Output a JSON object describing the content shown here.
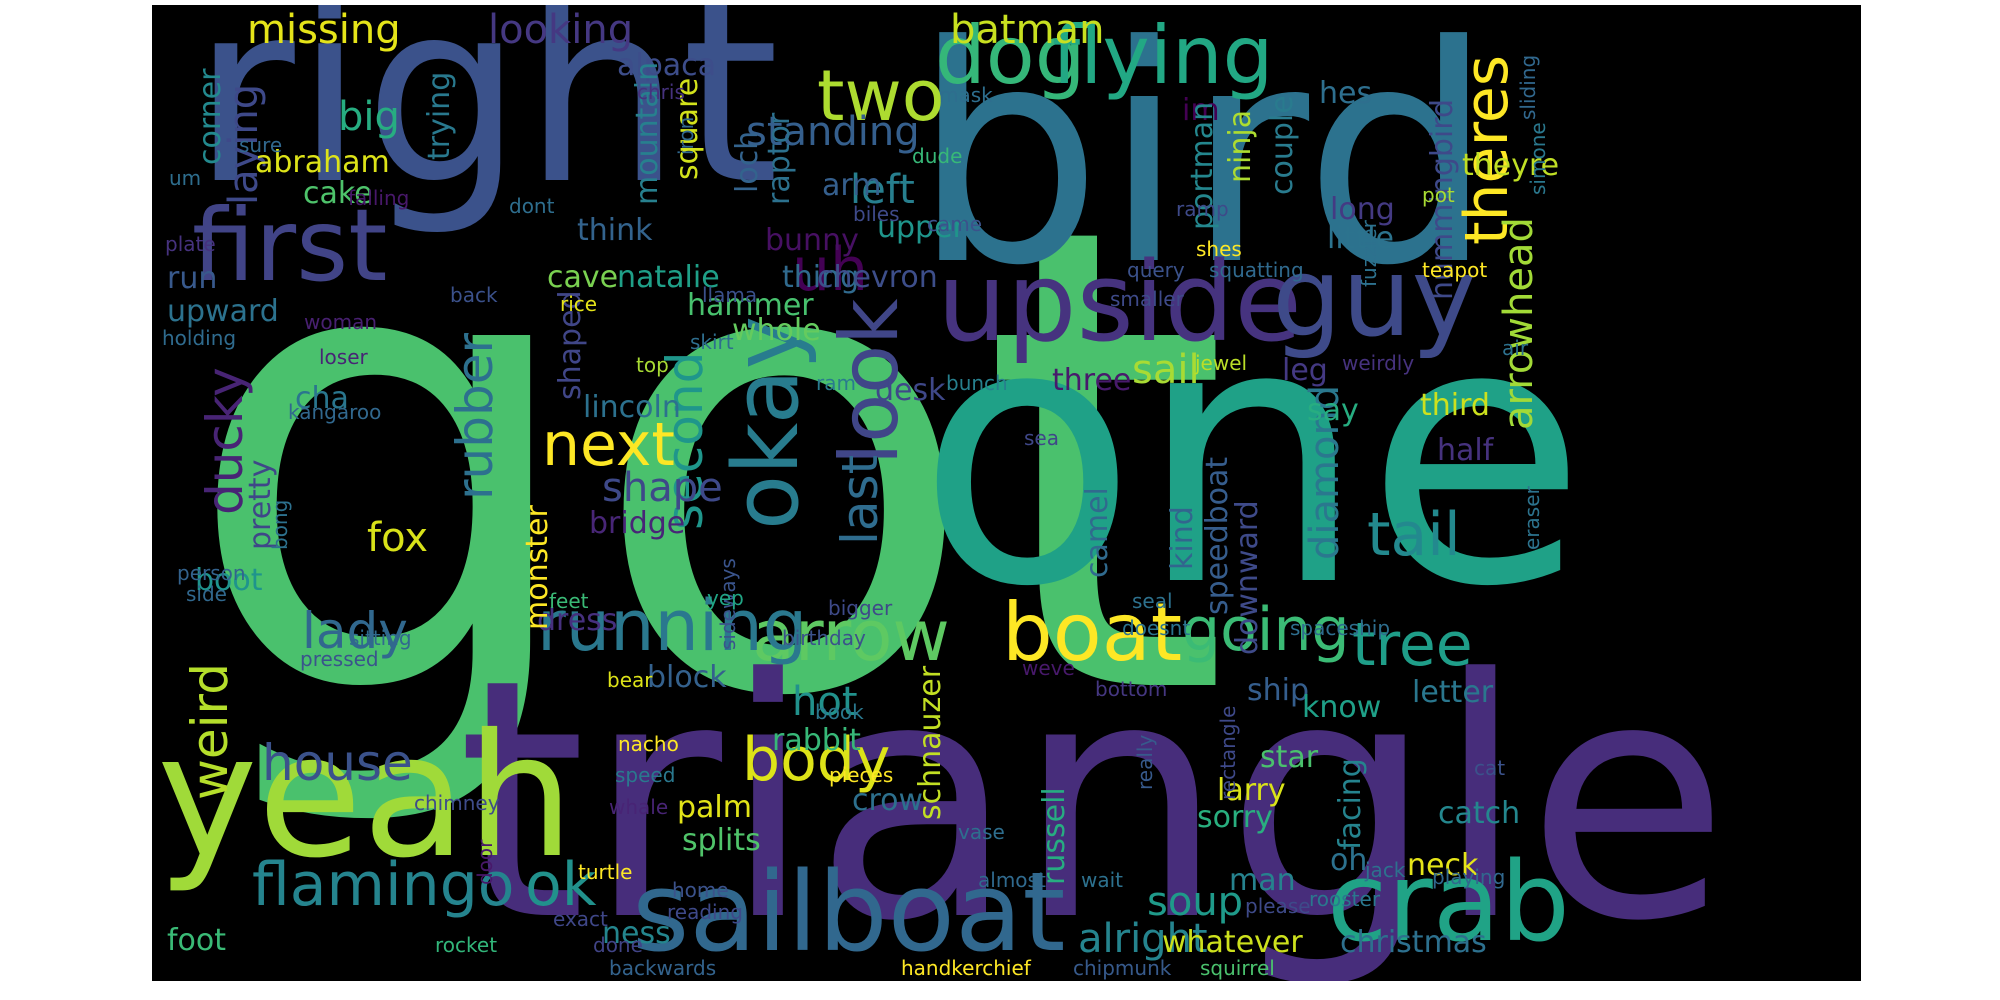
{
  "palette": {
    "background": "#000000",
    "page": "#ffffff",
    "lime": "#a0da39",
    "green": "#4ac16d",
    "teal": "#1fa187",
    "cyan": "#277f8e",
    "steel": "#365c8d",
    "indigo": "#46327e",
    "purple": "#440154",
    "yellow": "#fde725"
  },
  "words": [
    {
      "text": "got",
      "color": "#4ac16d",
      "vertical": false
    },
    {
      "text": "one",
      "color": "#1fa187",
      "vertical": false
    },
    {
      "text": "triangle",
      "color": "#472d7b",
      "vertical": false
    },
    {
      "text": "bird",
      "color": "#2c728e",
      "vertical": false
    },
    {
      "text": "right",
      "color": "#3b528b",
      "vertical": false
    },
    {
      "text": "yeah",
      "color": "#a0da39",
      "vertical": false
    },
    {
      "text": "sailboat",
      "color": "#31688e",
      "vertical": false
    },
    {
      "text": "crab",
      "color": "#20a386",
      "vertical": false
    },
    {
      "text": "upside",
      "color": "#46337f",
      "vertical": false
    },
    {
      "text": "guy",
      "color": "#3e4a89",
      "vertical": false
    },
    {
      "text": "first",
      "color": "#414487",
      "vertical": false
    },
    {
      "text": "dog",
      "color": "#35b779",
      "vertical": false
    },
    {
      "text": "flying",
      "color": "#22a884",
      "vertical": false
    },
    {
      "text": "boat",
      "color": "#fde725",
      "vertical": false
    },
    {
      "text": "arrow",
      "color": "#5ec962",
      "vertical": false
    },
    {
      "text": "running",
      "color": "#2a788e",
      "vertical": false
    },
    {
      "text": "okay",
      "color": "#287c8e",
      "vertical": true
    },
    {
      "text": "look",
      "color": "#404688",
      "vertical": true
    },
    {
      "text": "flamingo",
      "color": "#25848e",
      "vertical": false
    },
    {
      "text": "ok",
      "color": "#21918c",
      "vertical": false
    },
    {
      "text": "two",
      "color": "#addc30",
      "vertical": false
    },
    {
      "text": "theres",
      "color": "#fde725",
      "vertical": true
    },
    {
      "text": "going",
      "color": "#3bbb75",
      "vertical": false
    },
    {
      "text": "tree",
      "color": "#1f9e89",
      "vertical": false
    },
    {
      "text": "tail",
      "color": "#23898e",
      "vertical": false
    },
    {
      "text": "next",
      "color": "#fde725",
      "vertical": false
    },
    {
      "text": "uh",
      "color": "#440154",
      "vertical": false
    },
    {
      "text": "body",
      "color": "#dde318",
      "vertical": false
    },
    {
      "text": "house",
      "color": "#3b528b",
      "vertical": false
    },
    {
      "text": "lady",
      "color": "#31688e",
      "vertical": false
    },
    {
      "text": "weird",
      "color": "#b5de2b",
      "vertical": true
    },
    {
      "text": "ducky",
      "color": "#482475",
      "vertical": true
    },
    {
      "text": "rubber",
      "color": "#2d708e",
      "vertical": true
    },
    {
      "text": "second",
      "color": "#1f968b",
      "vertical": true
    },
    {
      "text": "last",
      "color": "#2f6c8e",
      "vertical": true
    },
    {
      "text": "fox",
      "color": "#d8e219",
      "vertical": false
    },
    {
      "text": "shape",
      "color": "#3e4989",
      "vertical": false
    },
    {
      "text": "batman",
      "color": "#c8e020",
      "vertical": false
    },
    {
      "text": "missing",
      "color": "#e5e419",
      "vertical": false
    },
    {
      "text": "looking",
      "color": "#453882",
      "vertical": false
    },
    {
      "text": "big",
      "color": "#27ad81",
      "vertical": false
    },
    {
      "text": "left",
      "color": "#277f8e",
      "vertical": false
    },
    {
      "text": "standing",
      "color": "#355f8d",
      "vertical": false
    },
    {
      "text": "laying",
      "color": "#3e4989",
      "vertical": true
    },
    {
      "text": "soup",
      "color": "#1f9a8a",
      "vertical": false
    },
    {
      "text": "alright",
      "color": "#25848e",
      "vertical": false
    },
    {
      "text": "foot",
      "color": "#3aba76",
      "vertical": false
    },
    {
      "text": "ness",
      "color": "#24868e",
      "vertical": false
    },
    {
      "text": "sail",
      "color": "#a8db34",
      "vertical": false
    },
    {
      "text": "diamond",
      "color": "#2a788e",
      "vertical": true
    },
    {
      "text": "arrowhead",
      "color": "#a2da37",
      "vertical": true
    },
    {
      "text": "hot",
      "color": "#21918c",
      "vertical": false
    },
    {
      "text": "three",
      "color": "#481a6c",
      "vertical": false
    },
    {
      "text": "leg",
      "color": "#443983",
      "vertical": false
    },
    {
      "text": "third",
      "color": "#cde11d",
      "vertical": false
    },
    {
      "text": "block",
      "color": "#34618d",
      "vertical": false
    },
    {
      "text": "rabbit",
      "color": "#37b878",
      "vertical": false
    },
    {
      "text": "palm",
      "color": "#e2e418",
      "vertical": false
    },
    {
      "text": "crow",
      "color": "#2d708e",
      "vertical": false
    },
    {
      "text": "splits",
      "color": "#50c46a",
      "vertical": false
    },
    {
      "text": "dress",
      "color": "#46307e",
      "vertical": false
    },
    {
      "text": "lincoln",
      "color": "#2c718e",
      "vertical": false
    },
    {
      "text": "cave",
      "color": "#7ad151",
      "vertical": false
    },
    {
      "text": "natalie",
      "color": "#1fa088",
      "vertical": false
    },
    {
      "text": "hammer",
      "color": "#48c16e",
      "vertical": false
    },
    {
      "text": "whole",
      "color": "#65cb5e",
      "vertical": false
    },
    {
      "text": "thing",
      "color": "#306a8e",
      "vertical": false
    },
    {
      "text": "think",
      "color": "#33638d",
      "vertical": false
    },
    {
      "text": "square",
      "color": "#d2e21b",
      "vertical": true
    },
    {
      "text": "chevron",
      "color": "#3d4e8a",
      "vertical": false
    },
    {
      "text": "upper",
      "color": "#1f958b",
      "vertical": false
    },
    {
      "text": "bunny",
      "color": "#471063",
      "vertical": false
    },
    {
      "text": "desk",
      "color": "#3f4889",
      "vertical": false
    },
    {
      "text": "bridge",
      "color": "#482677",
      "vertical": false
    },
    {
      "text": "monster",
      "color": "#fde725",
      "vertical": true
    },
    {
      "text": "shaped",
      "color": "#404688",
      "vertical": true
    },
    {
      "text": "say",
      "color": "#27ad81",
      "vertical": false
    },
    {
      "text": "hes",
      "color": "#2e6f8e",
      "vertical": false
    },
    {
      "text": "long",
      "color": "#443a83",
      "vertical": false
    },
    {
      "text": "little",
      "color": "#2c738e",
      "vertical": false
    },
    {
      "text": "theyre",
      "color": "#c0df25",
      "vertical": false
    },
    {
      "text": "hummingbird",
      "color": "#3e4989",
      "vertical": true
    },
    {
      "text": "abraham",
      "color": "#dde318",
      "vertical": false
    },
    {
      "text": "cake",
      "color": "#4ec36b",
      "vertical": false
    },
    {
      "text": "arm",
      "color": "#355f8d",
      "vertical": false
    },
    {
      "text": "im",
      "color": "#440154",
      "vertical": false
    },
    {
      "text": "couple",
      "color": "#297b8e",
      "vertical": true
    },
    {
      "text": "portman",
      "color": "#24878e",
      "vertical": true
    },
    {
      "text": "ninja",
      "color": "#addc30",
      "vertical": true
    },
    {
      "text": "alpaca",
      "color": "#3d4d8a",
      "vertical": false
    },
    {
      "text": "loch",
      "color": "#33638d",
      "vertical": true
    },
    {
      "text": "mountain",
      "color": "#27808e",
      "vertical": true
    },
    {
      "text": "raptor",
      "color": "#2c718e",
      "vertical": true
    },
    {
      "text": "trying",
      "color": "#29798e",
      "vertical": true
    },
    {
      "text": "corner",
      "color": "#23898e",
      "vertical": true
    },
    {
      "text": "upward",
      "color": "#2c728e",
      "vertical": false
    },
    {
      "text": "run",
      "color": "#38598c",
      "vertical": false
    },
    {
      "text": "cha",
      "color": "#2a768e",
      "vertical": false
    },
    {
      "text": "boot",
      "color": "#1f948c",
      "vertical": false
    },
    {
      "text": "pretty",
      "color": "#3f4788",
      "vertical": true
    },
    {
      "text": "schnauzer",
      "color": "#c2df23",
      "vertical": true
    },
    {
      "text": "sideways",
      "color": "#3a548c",
      "vertical": true
    },
    {
      "text": "camel",
      "color": "#306a8e",
      "vertical": true
    },
    {
      "text": "speedboat",
      "color": "#365d8d",
      "vertical": true
    },
    {
      "text": "russell",
      "color": "#27ad81",
      "vertical": true
    },
    {
      "text": "kind",
      "color": "#32658e",
      "vertical": true
    },
    {
      "text": "downward",
      "color": "#3e4a89",
      "vertical": true
    },
    {
      "text": "half",
      "color": "#46327e",
      "vertical": false
    },
    {
      "text": "ship",
      "color": "#355e8d",
      "vertical": false
    },
    {
      "text": "star",
      "color": "#4ac16d",
      "vertical": false
    },
    {
      "text": "larry",
      "color": "#dae319",
      "vertical": false
    },
    {
      "text": "sorry",
      "color": "#29af7f",
      "vertical": false
    },
    {
      "text": "know",
      "color": "#1fa088",
      "vertical": false
    },
    {
      "text": "letter",
      "color": "#2a778e",
      "vertical": false
    },
    {
      "text": "oh",
      "color": "#2c718e",
      "vertical": false
    },
    {
      "text": "catch",
      "color": "#24878e",
      "vertical": false
    },
    {
      "text": "christmas",
      "color": "#2d708e",
      "vertical": false
    },
    {
      "text": "neck",
      "color": "#e5e419",
      "vertical": false
    },
    {
      "text": "man",
      "color": "#26828e",
      "vertical": false
    },
    {
      "text": "whatever",
      "color": "#cde11d",
      "vertical": false
    },
    {
      "text": "facing",
      "color": "#25838e",
      "vertical": true
    },
    {
      "text": "really",
      "color": "#375a8c",
      "vertical": true
    },
    {
      "text": "bottom",
      "color": "#453781",
      "vertical": false
    },
    {
      "text": "weve",
      "color": "#48196b",
      "vertical": false
    },
    {
      "text": "spaceship",
      "color": "#2e6e8e",
      "vertical": false
    },
    {
      "text": "yep",
      "color": "#21a585",
      "vertical": false
    },
    {
      "text": "feet",
      "color": "#3aba76",
      "vertical": false
    },
    {
      "text": "birthday",
      "color": "#3b528b",
      "vertical": false
    },
    {
      "text": "bigger",
      "color": "#3e4a89",
      "vertical": false
    },
    {
      "text": "doesnt",
      "color": "#2b748e",
      "vertical": false
    },
    {
      "text": "seal",
      "color": "#2d718e",
      "vertical": false
    },
    {
      "text": "rectangle",
      "color": "#3e4989",
      "vertical": true
    },
    {
      "text": "eraser",
      "color": "#2c738e",
      "vertical": true
    },
    {
      "text": "air",
      "color": "#2d718e",
      "vertical": false
    },
    {
      "text": "weirdly",
      "color": "#46327e",
      "vertical": false
    },
    {
      "text": "jewel",
      "color": "#bade28",
      "vertical": false
    },
    {
      "text": "bunch",
      "color": "#27808e",
      "vertical": false
    },
    {
      "text": "sea",
      "color": "#3f4788",
      "vertical": false
    },
    {
      "text": "ram",
      "color": "#297b8e",
      "vertical": false
    },
    {
      "text": "top",
      "color": "#a8db34",
      "vertical": false
    },
    {
      "text": "skirt",
      "color": "#2e6e8e",
      "vertical": false
    },
    {
      "text": "llama",
      "color": "#3b518b",
      "vertical": false
    },
    {
      "text": "rice",
      "color": "#e5e419",
      "vertical": false
    },
    {
      "text": "back",
      "color": "#3b518b",
      "vertical": false
    },
    {
      "text": "woman",
      "color": "#482071",
      "vertical": false
    },
    {
      "text": "holding",
      "color": "#2f6b8e",
      "vertical": false
    },
    {
      "text": "loser",
      "color": "#482575",
      "vertical": false
    },
    {
      "text": "kangaroo",
      "color": "#31688e",
      "vertical": false
    },
    {
      "text": "person",
      "color": "#33628d",
      "vertical": false
    },
    {
      "text": "side",
      "color": "#31688e",
      "vertical": false
    },
    {
      "text": "bong",
      "color": "#2d718e",
      "vertical": true
    },
    {
      "text": "sitting",
      "color": "#306a8e",
      "vertical": false
    },
    {
      "text": "pressed",
      "color": "#3a548c",
      "vertical": false
    },
    {
      "text": "chimney",
      "color": "#3e4c8a",
      "vertical": false
    },
    {
      "text": "bear",
      "color": "#dde318",
      "vertical": false
    },
    {
      "text": "nacho",
      "color": "#fde725",
      "vertical": false
    },
    {
      "text": "speed",
      "color": "#2a788e",
      "vertical": false
    },
    {
      "text": "whale",
      "color": "#482475",
      "vertical": false
    },
    {
      "text": "door",
      "color": "#48186a",
      "vertical": true
    },
    {
      "text": "done",
      "color": "#414487",
      "vertical": false
    },
    {
      "text": "rocket",
      "color": "#32b67a",
      "vertical": false
    },
    {
      "text": "exact",
      "color": "#3f4788",
      "vertical": false
    },
    {
      "text": "backwards",
      "color": "#33638d",
      "vertical": false
    },
    {
      "text": "turtle",
      "color": "#fde725",
      "vertical": false
    },
    {
      "text": "home",
      "color": "#3b528b",
      "vertical": false
    },
    {
      "text": "reading",
      "color": "#3e4989",
      "vertical": false
    },
    {
      "text": "book",
      "color": "#2a788e",
      "vertical": false
    },
    {
      "text": "pieces",
      "color": "#fde725",
      "vertical": false
    },
    {
      "text": "vase",
      "color": "#2e6e8e",
      "vertical": false
    },
    {
      "text": "almost",
      "color": "#306a8e",
      "vertical": false
    },
    {
      "text": "wait",
      "color": "#2d718e",
      "vertical": false
    },
    {
      "text": "handkerchief",
      "color": "#fde725",
      "vertical": false
    },
    {
      "text": "chipmunk",
      "color": "#375a8c",
      "vertical": false
    },
    {
      "text": "squirrel",
      "color": "#4ac16d",
      "vertical": false
    },
    {
      "text": "please",
      "color": "#3e4a89",
      "vertical": false
    },
    {
      "text": "rooster",
      "color": "#2a788e",
      "vertical": false
    },
    {
      "text": "jack",
      "color": "#2d718e",
      "vertical": false
    },
    {
      "text": "playing",
      "color": "#31688e",
      "vertical": false
    },
    {
      "text": "cat",
      "color": "#3b528b",
      "vertical": false
    },
    {
      "text": "mask",
      "color": "#2e6e8e",
      "vertical": false
    },
    {
      "text": "dude",
      "color": "#37b878",
      "vertical": false
    },
    {
      "text": "chris",
      "color": "#46327e",
      "vertical": false
    },
    {
      "text": "sure",
      "color": "#31688e",
      "vertical": false
    },
    {
      "text": "um",
      "color": "#2e6e8e",
      "vertical": false
    },
    {
      "text": "falling",
      "color": "#48186a",
      "vertical": false
    },
    {
      "text": "dont",
      "color": "#2e6e8e",
      "vertical": false
    },
    {
      "text": "iron",
      "color": "#31688e",
      "vertical": true
    },
    {
      "text": "biles",
      "color": "#3e4a89",
      "vertical": false
    },
    {
      "text": "came",
      "color": "#3b528b",
      "vertical": false
    },
    {
      "text": "plate",
      "color": "#46327e",
      "vertical": false
    },
    {
      "text": "ramp",
      "color": "#3e4a89",
      "vertical": false
    },
    {
      "text": "shes",
      "color": "#fde725",
      "vertical": false
    },
    {
      "text": "query",
      "color": "#3b528b",
      "vertical": false
    },
    {
      "text": "squatting",
      "color": "#306a8e",
      "vertical": false
    },
    {
      "text": "smaller",
      "color": "#3e4a89",
      "vertical": false
    },
    {
      "text": "fuzzier",
      "color": "#2d718e",
      "vertical": true
    },
    {
      "text": "teapot",
      "color": "#fde725",
      "vertical": false
    },
    {
      "text": "pot",
      "color": "#a8db34",
      "vertical": false
    },
    {
      "text": "sliding",
      "color": "#31688e",
      "vertical": true
    },
    {
      "text": "simone",
      "color": "#2a788e",
      "vertical": true
    }
  ]
}
